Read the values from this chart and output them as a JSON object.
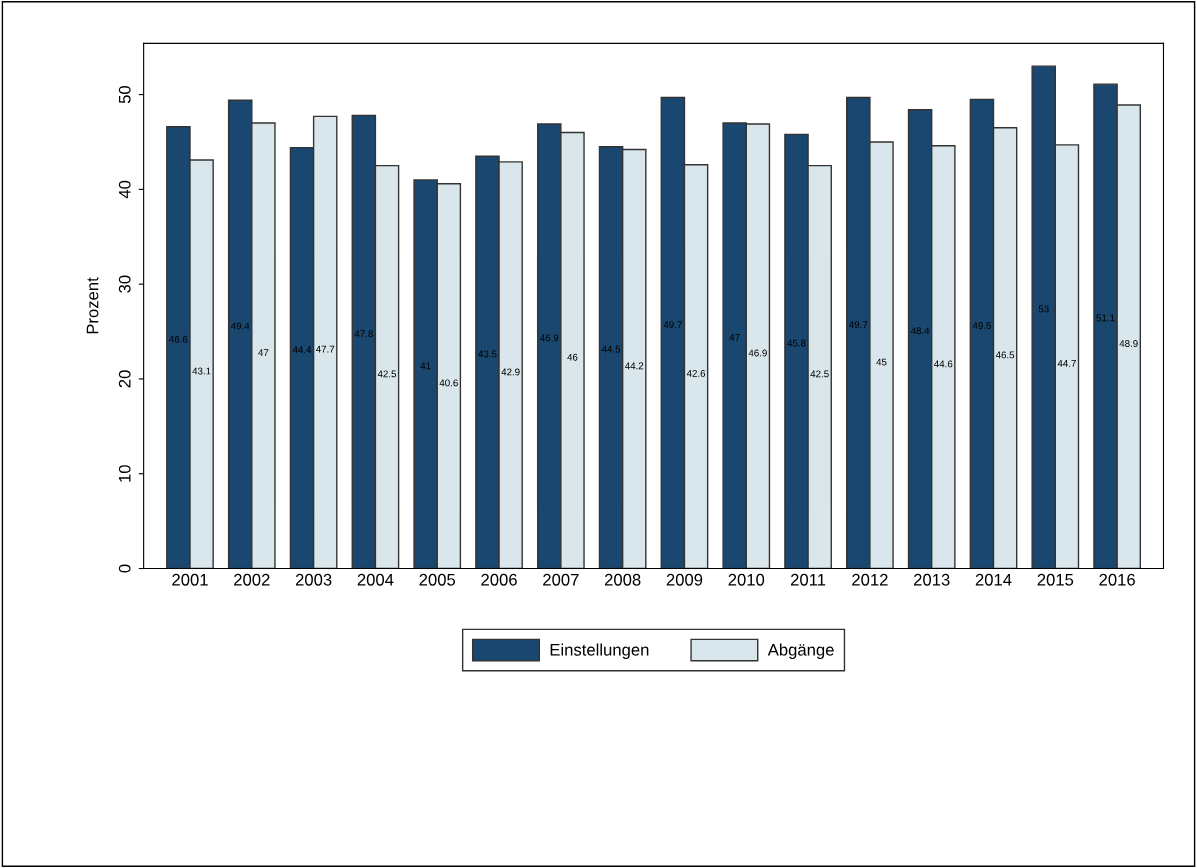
{
  "chart_data": {
    "type": "bar",
    "ylabel": "Prozent",
    "categories": [
      "2001",
      "2002",
      "2003",
      "2004",
      "2005",
      "2006",
      "2007",
      "2008",
      "2009",
      "2010",
      "2011",
      "2012",
      "2013",
      "2014",
      "2015",
      "2016"
    ],
    "series": [
      {
        "name": "Einstellungen",
        "color": "#1a476f",
        "values": [
          46.6,
          49.4,
          44.4,
          47.8,
          41,
          43.5,
          46.9,
          44.5,
          49.7,
          47,
          45.8,
          49.7,
          48.4,
          49.5,
          53,
          51.1
        ]
      },
      {
        "name": "Abgänge",
        "color": "#d9e6eb",
        "values": [
          43.1,
          47,
          47.7,
          42.5,
          40.6,
          42.9,
          46,
          44.2,
          42.6,
          46.9,
          42.5,
          45,
          44.6,
          46.5,
          44.7,
          48.9
        ]
      }
    ],
    "ylim": [
      0,
      55.4
    ],
    "yticks": [
      0,
      10,
      20,
      30,
      40,
      50
    ],
    "grid": false,
    "legend": "bottom",
    "data_labels": true
  }
}
